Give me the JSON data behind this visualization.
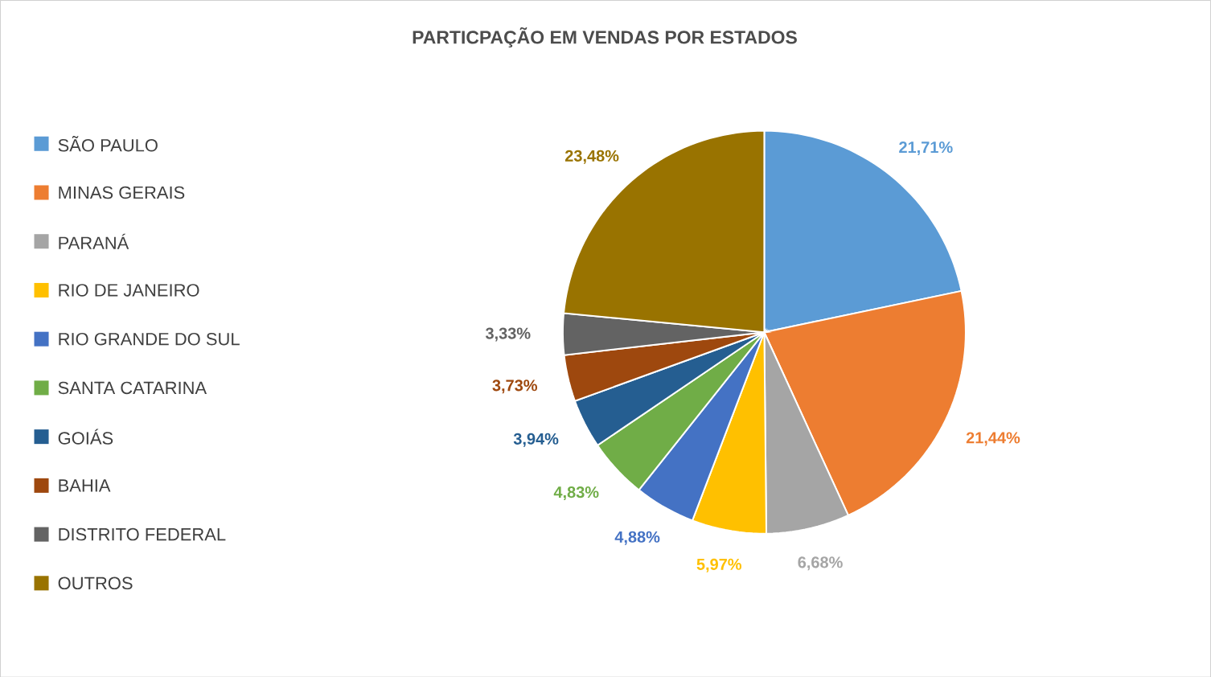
{
  "chart_data": {
    "type": "pie",
    "title": "PARTICPAÇÃO EM VENDAS POR ESTADOS",
    "categories": [
      "SÃO PAULO",
      "MINAS GERAIS",
      "PARANÁ",
      "RIO DE JANEIRO",
      "RIO GRANDE DO SUL",
      "SANTA CATARINA",
      "GOIÁS",
      "BAHIA",
      "DISTRITO FEDERAL",
      "OUTROS"
    ],
    "values": [
      21.71,
      21.44,
      6.68,
      5.97,
      4.88,
      4.83,
      3.94,
      3.73,
      3.33,
      23.48
    ],
    "value_labels": [
      "21,71%",
      "21,44%",
      "6,68%",
      "5,97%",
      "4,88%",
      "4,83%",
      "3,94%",
      "3,73%",
      "3,33%",
      "23,48%"
    ],
    "colors": [
      "#5b9bd5",
      "#ed7d31",
      "#a5a5a5",
      "#ffc000",
      "#4472c4",
      "#70ad47",
      "#255e91",
      "#9e480e",
      "#636363",
      "#997300"
    ],
    "legend": "left"
  }
}
